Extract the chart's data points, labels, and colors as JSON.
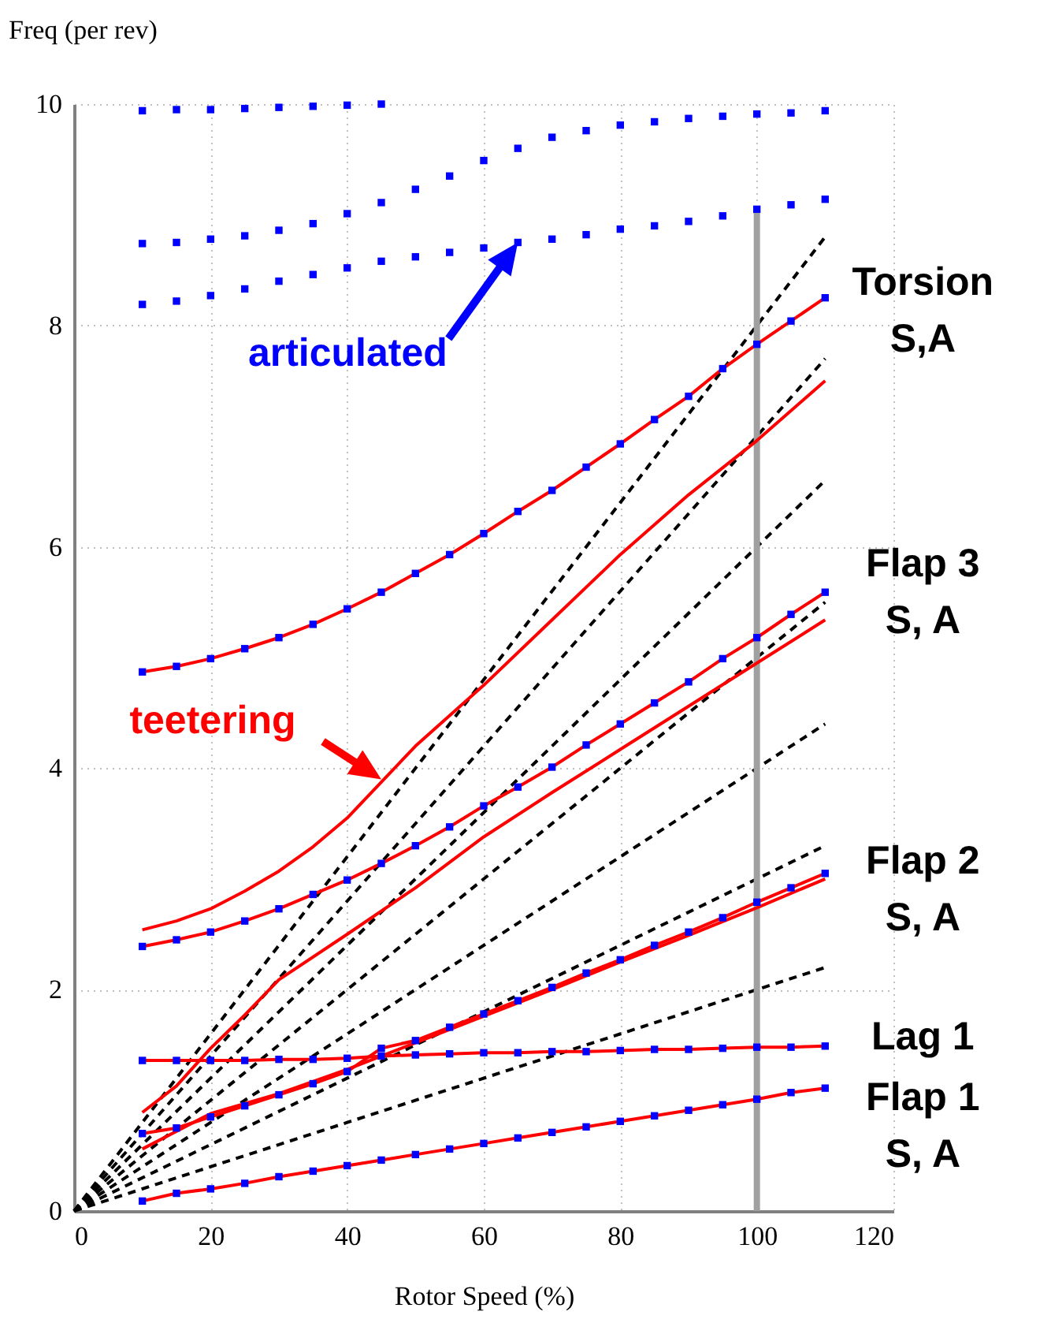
{
  "chart_data": {
    "type": "line",
    "xlabel": "Rotor Speed (%)",
    "ylabel": "Freq (per rev)",
    "xlim": [
      0,
      120
    ],
    "xticks": [
      0,
      20,
      40,
      60,
      80,
      100,
      120
    ],
    "ylim": [
      0,
      10
    ],
    "yticks": [
      0,
      2,
      4,
      6,
      8,
      10
    ],
    "grid": true,
    "series": [
      {
        "type": "line",
        "color": "#000000",
        "line_style": "dashed",
        "marker": "none",
        "x": [
          0,
          110
        ],
        "values": [
          0,
          2.2
        ]
      },
      {
        "type": "line",
        "color": "#000000",
        "line_style": "dashed",
        "marker": "none",
        "x": [
          0,
          110
        ],
        "values": [
          0,
          3.3
        ]
      },
      {
        "type": "line",
        "color": "#000000",
        "line_style": "dashed",
        "marker": "none",
        "x": [
          0,
          110
        ],
        "values": [
          0,
          4.4
        ]
      },
      {
        "type": "line",
        "color": "#000000",
        "line_style": "dashed",
        "marker": "none",
        "x": [
          0,
          110
        ],
        "values": [
          0,
          5.5
        ]
      },
      {
        "type": "line",
        "color": "#000000",
        "line_style": "dashed",
        "marker": "none",
        "x": [
          0,
          110
        ],
        "values": [
          0,
          6.6
        ]
      },
      {
        "type": "line",
        "color": "#000000",
        "line_style": "dashed",
        "marker": "none",
        "x": [
          0,
          110
        ],
        "values": [
          0,
          7.7
        ]
      },
      {
        "type": "line",
        "color": "#000000",
        "line_style": "dashed",
        "marker": "none",
        "x": [
          0,
          110
        ],
        "values": [
          0,
          8.8
        ]
      },
      {
        "type": "line",
        "color": "#a0a0a0",
        "line_style": "solid",
        "marker": "none",
        "x": [
          100,
          100
        ],
        "values": [
          0,
          9.05
        ]
      },
      {
        "type": "line",
        "color": "#ff0000",
        "line_style": "solid",
        "marker": "none",
        "x": [
          10,
          15,
          20,
          25,
          30,
          35,
          40,
          45,
          50,
          55,
          60,
          65,
          70,
          75,
          80,
          85,
          90,
          95,
          100,
          105,
          110
        ],
        "values": [
          4.87,
          4.92,
          4.99,
          5.08,
          5.18,
          5.3,
          5.44,
          5.59,
          5.76,
          5.93,
          6.12,
          6.32,
          6.51,
          6.72,
          6.93,
          7.15,
          7.36,
          7.61,
          7.83,
          8.04,
          8.25
        ]
      },
      {
        "type": "line",
        "color": "#ff0000",
        "line_style": "solid",
        "marker": "none",
        "x": [
          10,
          15,
          20,
          25,
          30,
          35,
          40,
          45,
          50,
          55,
          60,
          65,
          70,
          75,
          80,
          85,
          90,
          95,
          100,
          105,
          110
        ],
        "values": [
          2.39,
          2.45,
          2.52,
          2.62,
          2.73,
          2.86,
          2.99,
          3.14,
          3.3,
          3.47,
          3.66,
          3.83,
          4.01,
          4.21,
          4.4,
          4.59,
          4.78,
          4.99,
          5.18,
          5.39,
          5.59
        ]
      },
      {
        "type": "line",
        "color": "#ff0000",
        "line_style": "solid",
        "marker": "none",
        "x": [
          10,
          15,
          20,
          25,
          30,
          35,
          40,
          50,
          60,
          70,
          80,
          90,
          100,
          110
        ],
        "values": [
          2.54,
          2.62,
          2.73,
          2.89,
          3.07,
          3.29,
          3.55,
          4.2,
          4.75,
          5.34,
          5.93,
          6.47,
          6.96,
          7.5
        ]
      },
      {
        "type": "line",
        "color": "#ff0000",
        "line_style": "solid",
        "marker": "none",
        "x": [
          10,
          15,
          20,
          25,
          30,
          40,
          50,
          60,
          70,
          80,
          90,
          100,
          110
        ],
        "values": [
          0.89,
          1.13,
          1.47,
          1.77,
          2.09,
          2.5,
          2.92,
          3.38,
          3.78,
          4.17,
          4.56,
          4.95,
          5.34
        ]
      },
      {
        "type": "line",
        "color": "#ff0000",
        "line_style": "solid",
        "marker": "none",
        "x": [
          10,
          20,
          30,
          40,
          50,
          60,
          70,
          80,
          90,
          100,
          110
        ],
        "values": [
          0.56,
          0.88,
          1.06,
          1.28,
          1.52,
          1.76,
          2.0,
          2.25,
          2.49,
          2.74,
          3.0
        ]
      },
      {
        "type": "line",
        "color": "#ff0000",
        "line_style": "solid",
        "marker": "none",
        "x": [
          10,
          15,
          20,
          25,
          30,
          35,
          40,
          45,
          50,
          55,
          60,
          65,
          70,
          75,
          80,
          85,
          90,
          95,
          100,
          105,
          110
        ],
        "values": [
          0.7,
          0.75,
          0.85,
          0.95,
          1.05,
          1.15,
          1.26,
          1.47,
          1.54,
          1.66,
          1.78,
          1.9,
          2.02,
          2.15,
          2.27,
          2.4,
          2.52,
          2.65,
          2.79,
          2.92,
          3.05
        ]
      },
      {
        "type": "line",
        "color": "#ff0000",
        "line_style": "solid",
        "marker": "none",
        "x": [
          10,
          15,
          20,
          25,
          30,
          35,
          40,
          45,
          50,
          55,
          60,
          65,
          70,
          75,
          80,
          85,
          90,
          95,
          100,
          105,
          110
        ],
        "values": [
          1.36,
          1.36,
          1.36,
          1.36,
          1.37,
          1.37,
          1.38,
          1.4,
          1.41,
          1.42,
          1.43,
          1.43,
          1.44,
          1.44,
          1.45,
          1.46,
          1.46,
          1.47,
          1.48,
          1.48,
          1.49
        ]
      },
      {
        "type": "line",
        "color": "#ff0000",
        "line_style": "solid",
        "marker": "none",
        "x": [
          10,
          15,
          20,
          25,
          30,
          35,
          40,
          45,
          50,
          55,
          60,
          65,
          70,
          75,
          80,
          85,
          90,
          95,
          100,
          105,
          110
        ],
        "values": [
          0.09,
          0.16,
          0.2,
          0.25,
          0.31,
          0.36,
          0.41,
          0.46,
          0.51,
          0.56,
          0.61,
          0.66,
          0.71,
          0.76,
          0.81,
          0.86,
          0.91,
          0.96,
          1.01,
          1.07,
          1.11
        ]
      },
      {
        "type": "scatter",
        "color": "#0000ff",
        "marker": "square",
        "x": [
          10,
          15,
          20,
          25,
          30,
          35,
          40,
          45
        ],
        "values": [
          9.94,
          9.95,
          9.95,
          9.96,
          9.97,
          9.98,
          9.99,
          10.0
        ]
      },
      {
        "type": "scatter",
        "color": "#0000ff",
        "marker": "square",
        "x": [
          10,
          15,
          20,
          25,
          30,
          35,
          40,
          45,
          50,
          55,
          60,
          65,
          70,
          75,
          80,
          85,
          90,
          95,
          100,
          105,
          110
        ],
        "values": [
          8.74,
          8.75,
          8.78,
          8.81,
          8.86,
          8.92,
          9.01,
          9.11,
          9.23,
          9.35,
          9.49,
          9.6,
          9.7,
          9.76,
          9.81,
          9.84,
          9.87,
          9.89,
          9.91,
          9.92,
          9.94
        ]
      },
      {
        "type": "scatter",
        "color": "#0000ff",
        "marker": "square",
        "x": [
          10,
          15,
          20,
          25,
          30,
          35,
          40,
          45,
          50,
          55,
          60,
          65,
          70,
          75,
          80,
          85,
          90,
          95,
          100,
          105,
          110
        ],
        "values": [
          8.19,
          8.22,
          8.27,
          8.33,
          8.4,
          8.46,
          8.52,
          8.58,
          8.62,
          8.66,
          8.7,
          8.75,
          8.78,
          8.82,
          8.87,
          8.9,
          8.94,
          8.99,
          9.05,
          9.09,
          9.14
        ]
      },
      {
        "type": "scatter",
        "color": "#0000ff",
        "marker": "square",
        "x": [
          10,
          15,
          20,
          25,
          30,
          35,
          40,
          45,
          50,
          55,
          60,
          65,
          70,
          75,
          80,
          85,
          90,
          95,
          100,
          105,
          110
        ],
        "values": [
          4.87,
          4.92,
          4.99,
          5.08,
          5.18,
          5.3,
          5.44,
          5.59,
          5.76,
          5.93,
          6.12,
          6.32,
          6.51,
          6.72,
          6.93,
          7.15,
          7.36,
          7.61,
          7.83,
          8.04,
          8.25
        ]
      },
      {
        "type": "scatter",
        "color": "#0000ff",
        "marker": "square",
        "x": [
          10,
          15,
          20,
          25,
          30,
          35,
          40,
          45,
          50,
          55,
          60,
          65,
          70,
          75,
          80,
          85,
          90,
          95,
          100,
          105,
          110
        ],
        "values": [
          2.39,
          2.45,
          2.52,
          2.62,
          2.73,
          2.86,
          2.99,
          3.14,
          3.3,
          3.47,
          3.66,
          3.83,
          4.01,
          4.21,
          4.4,
          4.59,
          4.78,
          4.99,
          5.18,
          5.39,
          5.59
        ]
      },
      {
        "type": "scatter",
        "color": "#0000ff",
        "marker": "square",
        "x": [
          10,
          15,
          20,
          25,
          30,
          35,
          40,
          45,
          50,
          55,
          60,
          65,
          70,
          75,
          80,
          85,
          90,
          95,
          100,
          105,
          110
        ],
        "values": [
          0.7,
          0.75,
          0.85,
          0.95,
          1.05,
          1.15,
          1.26,
          1.47,
          1.54,
          1.66,
          1.78,
          1.9,
          2.02,
          2.15,
          2.27,
          2.4,
          2.52,
          2.65,
          2.79,
          2.92,
          3.05
        ]
      },
      {
        "type": "scatter",
        "color": "#0000ff",
        "marker": "square",
        "x": [
          10,
          15,
          20,
          25,
          30,
          35,
          40,
          45,
          50,
          55,
          60,
          65,
          70,
          75,
          80,
          85,
          90,
          95,
          100,
          105,
          110
        ],
        "values": [
          1.36,
          1.36,
          1.36,
          1.36,
          1.37,
          1.37,
          1.38,
          1.4,
          1.41,
          1.42,
          1.43,
          1.43,
          1.44,
          1.44,
          1.45,
          1.46,
          1.46,
          1.47,
          1.48,
          1.48,
          1.49
        ]
      },
      {
        "type": "scatter",
        "color": "#0000ff",
        "marker": "square",
        "x": [
          10,
          15,
          20,
          25,
          30,
          35,
          40,
          45,
          50,
          55,
          60,
          65,
          70,
          75,
          80,
          85,
          90,
          95,
          100,
          105,
          110
        ],
        "values": [
          0.09,
          0.16,
          0.2,
          0.25,
          0.31,
          0.36,
          0.41,
          0.46,
          0.51,
          0.56,
          0.61,
          0.66,
          0.71,
          0.76,
          0.81,
          0.86,
          0.91,
          0.96,
          1.01,
          1.07,
          1.11
        ]
      }
    ],
    "annotations": [
      {
        "text": "Torsion\nS,A",
        "x": 110,
        "y": 8.25
      },
      {
        "text": "Flap 3\nS, A",
        "x": 110,
        "y": 5.59
      },
      {
        "text": "Flap 2\nS, A",
        "x": 110,
        "y": 3.05
      },
      {
        "text": "Lag 1",
        "x": 110,
        "y": 1.49
      },
      {
        "text": "Flap 1\nS, A",
        "x": 110,
        "y": 1.11
      },
      {
        "text": "articulated",
        "x": 65,
        "y": 8.75
      },
      {
        "text": "teetering",
        "x": 45,
        "y": 3.9
      }
    ]
  }
}
